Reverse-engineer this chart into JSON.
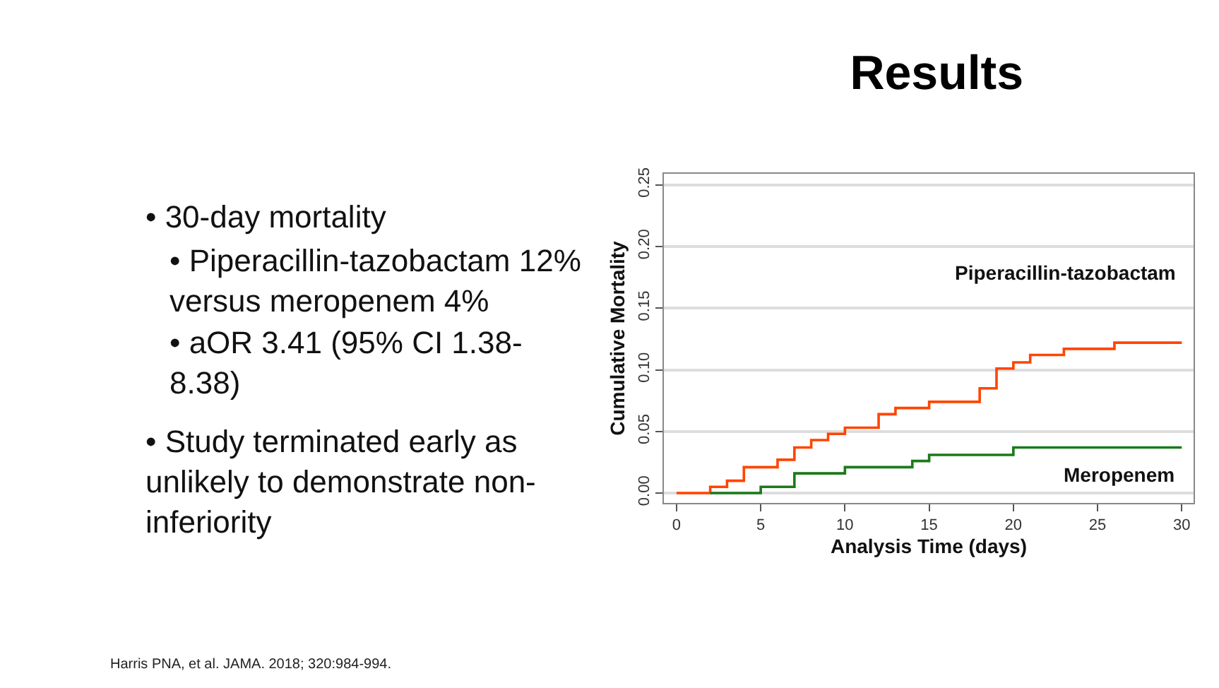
{
  "chart_data": {
    "type": "step",
    "title": "Results",
    "xlabel": "Analysis Time (days)",
    "ylabel": "Cumulative Mortality",
    "series": [
      {
        "name": "Piperacillin-tazobactam",
        "color": "#ff4500",
        "x": [
          0,
          2,
          3,
          4,
          6,
          7,
          8,
          9,
          10,
          12,
          13,
          15,
          18,
          19,
          20,
          21,
          23,
          26,
          30
        ],
        "values": [
          0,
          0.005,
          0.01,
          0.021,
          0.027,
          0.037,
          0.043,
          0.048,
          0.053,
          0.064,
          0.069,
          0.074,
          0.085,
          0.101,
          0.106,
          0.112,
          0.117,
          0.122,
          0.122
        ]
      },
      {
        "name": "Meropenem",
        "color": "#1a7a1a",
        "x": [
          2,
          5,
          7,
          10,
          14,
          15,
          20,
          30
        ],
        "values": [
          0,
          0.005,
          0.016,
          0.021,
          0.026,
          0.031,
          0.037,
          0.037
        ]
      }
    ],
    "xlim": [
      -0.75,
      30.7
    ],
    "ylim": [
      -0.008,
      0.259
    ],
    "xticks": [
      0,
      5,
      10,
      15,
      20,
      25,
      30
    ],
    "yticks": [
      {
        "value": 0,
        "label": "0.00"
      },
      {
        "value": 0.05,
        "label": "0.05"
      },
      {
        "value": 0.1,
        "label": "0.10"
      },
      {
        "value": 0.15,
        "label": "0.15"
      },
      {
        "value": 0.2,
        "label": "0.20"
      },
      {
        "value": 0.25,
        "label": "0.25"
      }
    ],
    "grid": "y",
    "legend": false,
    "annotations": [
      "• 30-day mortality",
      "• Piperacillin-tazobactam 12%\nversus meropenem 4%",
      "• aOR 3.41 (95% CI 1.38-\n8.38)",
      "• Study terminated early as\nunlikely to demonstrate non-\ninferiority",
      "Harris PNA, et al. JAMA. 2018; 320:984-994."
    ]
  }
}
